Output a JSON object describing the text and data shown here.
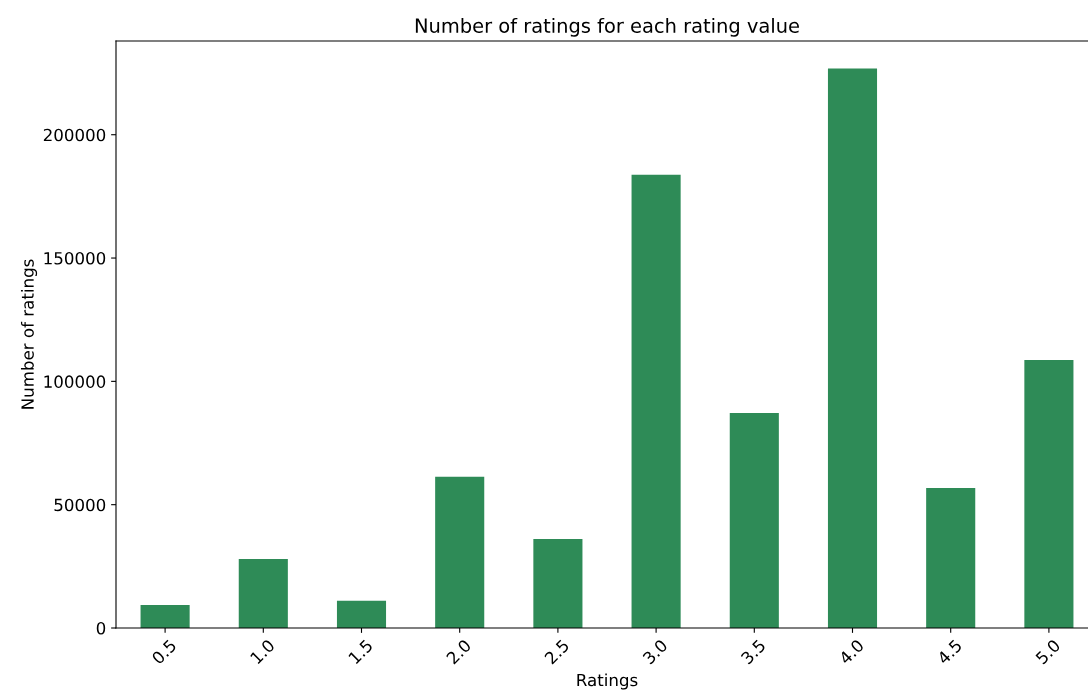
{
  "chart_data": {
    "type": "bar",
    "title": "Number of ratings for each rating value",
    "xlabel": "Ratings",
    "ylabel": "Number of ratings",
    "categories": [
      "0.5",
      "1.0",
      "1.5",
      "2.0",
      "2.5",
      "3.0",
      "3.5",
      "4.0",
      "4.5",
      "5.0"
    ],
    "values": [
      9300,
      28000,
      11000,
      61300,
      36100,
      183800,
      87200,
      226800,
      56800,
      108700
    ],
    "color": "#2e8b57",
    "ylim": [
      0,
      238000
    ],
    "yticks": [
      0,
      50000,
      100000,
      150000,
      200000
    ],
    "grid": false,
    "legend": false
  }
}
